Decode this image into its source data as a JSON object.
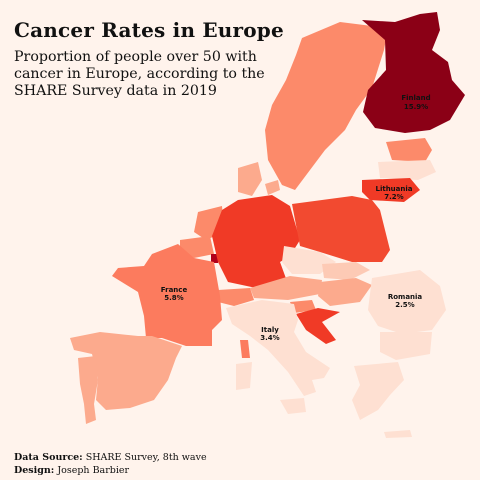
{
  "header": {
    "title": "Cancer Rates in Europe",
    "subtitle": "Proportion of people over 50 with cancer in Europe, according to the SHARE Survey data in 2019"
  },
  "footer": {
    "source_label": "Data Source:",
    "source_value": "SHARE Survey, 8th wave",
    "design_label": "Design:",
    "design_value": "Joseph Barbier"
  },
  "labels": {
    "finland": {
      "name": "Finland",
      "value": "15.9%"
    },
    "lithuania": {
      "name": "Lithuania",
      "value": "7.2%"
    },
    "france": {
      "name": "France",
      "value": "5.8%"
    },
    "italy": {
      "name": "Italy",
      "value": "3.4%"
    },
    "romania": {
      "name": "Romania",
      "value": "2.5%"
    }
  },
  "colors": {
    "background": "#fff3ec",
    "max": "#8b0016",
    "high": "#f03a26",
    "mid_high": "#fb6a4a",
    "mid": "#fc8a6a",
    "mid_low": "#fcaa8d",
    "low": "#fdcab5",
    "lowest": "#fee0d2"
  }
}
